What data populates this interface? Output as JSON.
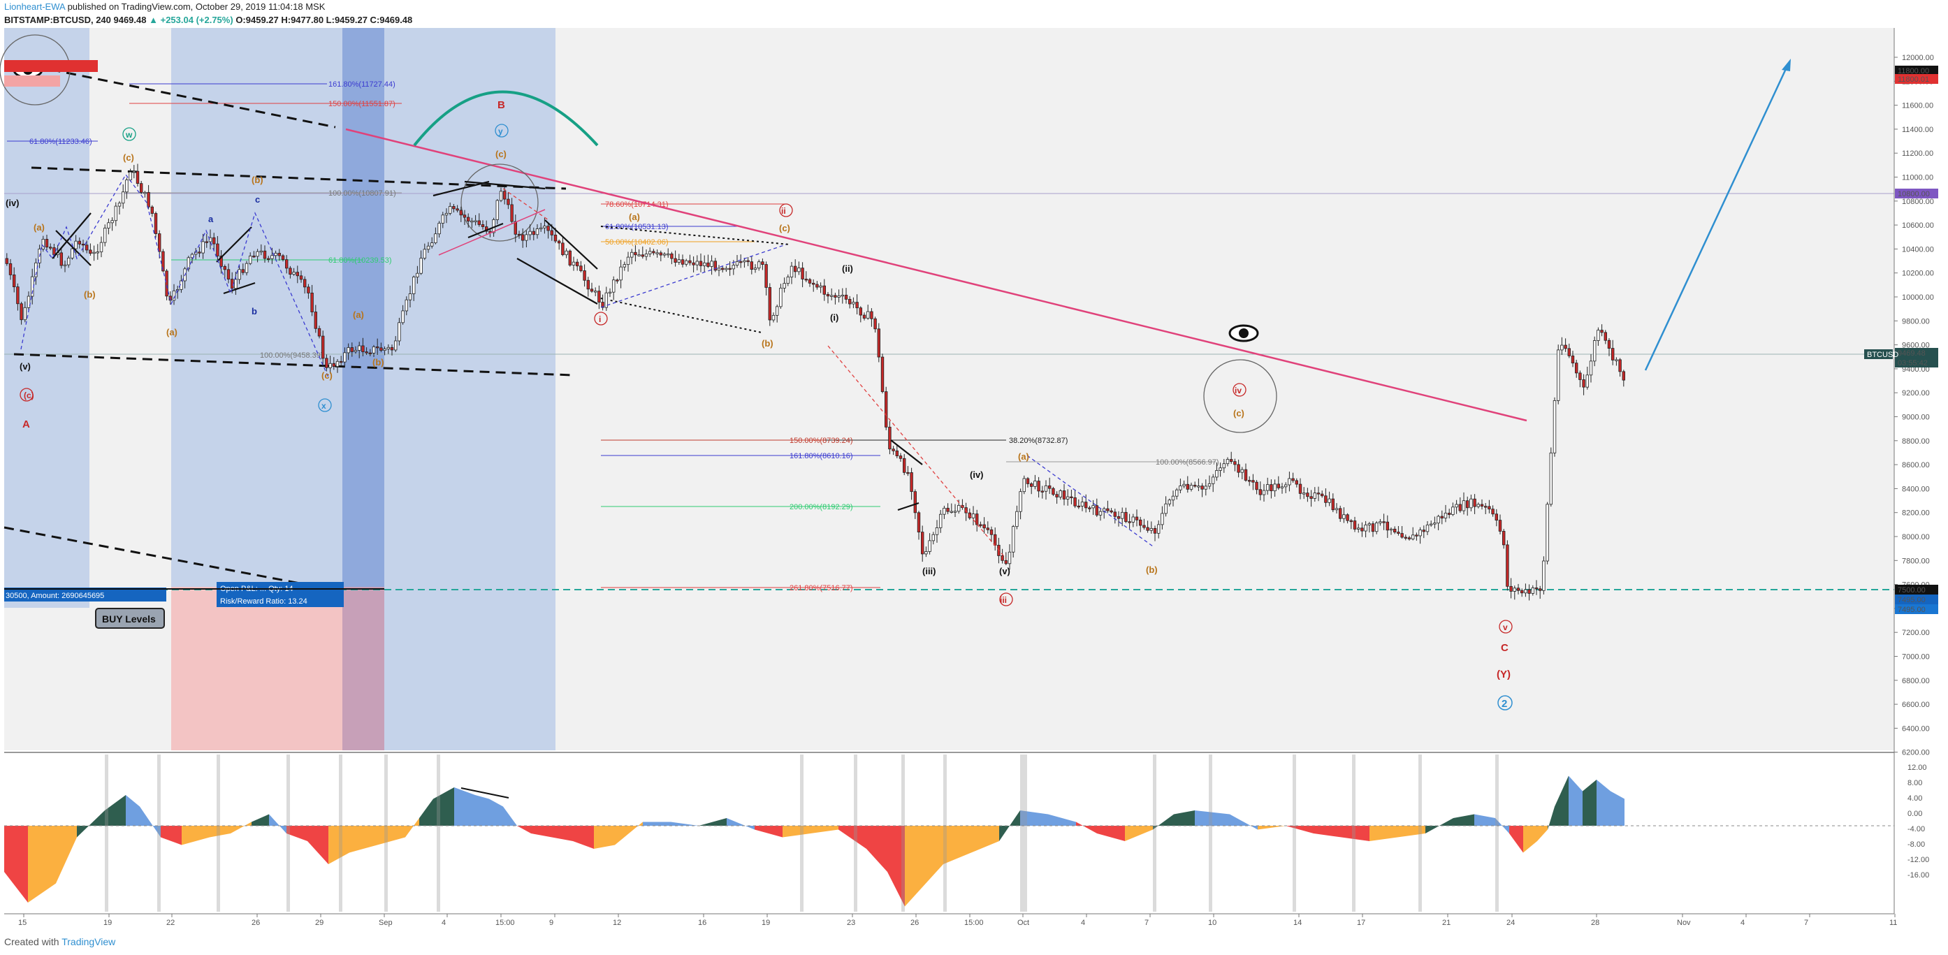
{
  "header": {
    "author": "Lionheart-EWA",
    "published": " published on TradingView.com, October 29, 2019 11:04:18 MSK",
    "symbol_line": "BITSTAMP:BTCUSD, 240  9469.48",
    "change": "▲ +253.04 (+2.75%)",
    "ohlc": "O:9459.27  H:9477.80  L:9459.27  C:9469.48"
  },
  "price_axis": {
    "labels": [
      "12000.00",
      "11800.00",
      "11600.00",
      "11400.00",
      "11200.00",
      "11000.00",
      "10800.00",
      "10600.00",
      "10400.00",
      "10200.00",
      "10000.00",
      "9800.00",
      "9600.00",
      "9400.00",
      "9200.00",
      "9000.00",
      "8800.00",
      "8600.00",
      "8400.00",
      "8200.00",
      "8000.00",
      "7800.00",
      "7600.00",
      "7400.00",
      "7200.00",
      "7000.00",
      "6800.00",
      "6600.00",
      "6400.00",
      "6200.00"
    ],
    "tags": [
      {
        "text": "11800.00",
        "bg": "#111111"
      },
      {
        "text": "11800.01",
        "bg": "#e03131"
      },
      {
        "text": "10800.00",
        "bg": "#7e57c2"
      },
      {
        "text": "9469.48",
        "bg": "#26504f"
      },
      {
        "text": "03:55:42",
        "bg": "#26504f"
      },
      {
        "text": "7500.00",
        "bg": "#111111"
      },
      {
        "text": "7495.00",
        "bg": "#1565c0"
      },
      {
        "text": "7495.00",
        "bg": "#1976d2"
      }
    ],
    "current_symbol": "BTCUSD"
  },
  "osc_axis": {
    "labels": [
      "12.00",
      "8.00",
      "4.00",
      "0.00",
      "-4.00",
      "-8.00",
      "-12.00",
      "-16.00"
    ]
  },
  "time_axis": {
    "labels": [
      "15",
      "19",
      "22",
      "26",
      "29",
      "Sep",
      "4",
      "15:00",
      "9",
      "12",
      "16",
      "19",
      "23",
      "26",
      "15:00",
      "Oct",
      "4",
      "7",
      "10",
      "14",
      "17",
      "21",
      "24",
      "28",
      "Nov",
      "4",
      "7",
      "11"
    ]
  },
  "fib_labels": [
    "161.80%(11727.44)",
    "150.00%(11551.87)",
    "61.80%(11233.46)",
    "100.00%(10807.91)",
    "61.80%(10239.53)",
    "100.00%(9458.39)",
    "78.60%(10714.31)",
    "61.80%(10531.13)",
    "50.00%(10402.06)",
    "150.00%(8739.24)",
    "161.80%(8610.16)",
    "200.00%(8192.29)",
    "261.80%(7516.77)",
    "38.20%(8732.87)",
    "100.00%(8566.97)"
  ],
  "wave_labels": {
    "A": "A",
    "B": "B",
    "C": "C",
    "Y": "(Y)",
    "two": "2",
    "w": "w",
    "x": "x",
    "y": "y",
    "a": "(a)",
    "b": "(b)",
    "c": "(c)",
    "sa": "a",
    "sb": "b",
    "sc": "c",
    "i": "i",
    "ii": "ii",
    "iii": "iii",
    "iv": "iv",
    "v": "v",
    "pi": "(i)",
    "pii": "(ii)",
    "piii": "(iii)",
    "piv": "(iv)",
    "pv": "(v)"
  },
  "position_tool": {
    "left_text": "30500, Amount: 2690645695",
    "open_text": "Open P&L: ... Qty: 14",
    "ratio_text": "Risk/Reward Ratio: 13.24",
    "buy_label": "BUY Levels"
  },
  "colors": {
    "blue_zone": "#c5d3ea",
    "blue_zone_dark": "#8fa9dc",
    "red_zone": "#f3c4c4",
    "bull": "#ffffff",
    "bear": "#c62828",
    "candle_outline": "#222222",
    "trendline": "#e0427a",
    "target_arrow": "#2f8fd0",
    "arc": "#16a085",
    "support": "#26a69a",
    "osc_red": "#ef4444",
    "osc_orange": "#fbb040",
    "osc_green": "#2f5e4f",
    "osc_blue": "#6f9fe0"
  },
  "footer": {
    "created": "Created with",
    "brand": "TradingView"
  }
}
